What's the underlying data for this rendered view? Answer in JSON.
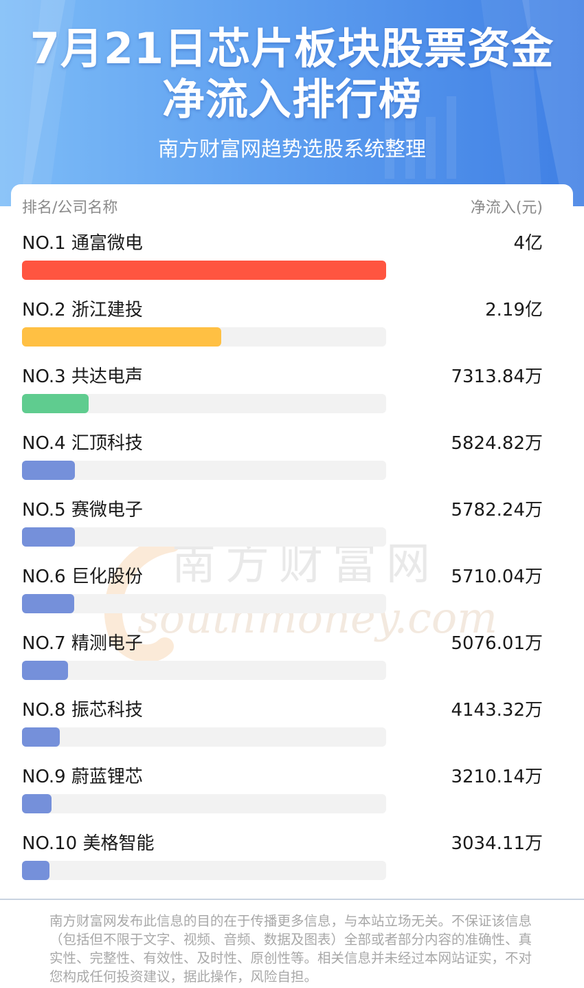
{
  "header": {
    "title_line1": "7月21日芯片板块股票资金",
    "title_line2": "净流入排行榜",
    "subtitle": "南方财富网趋势选股系统整理"
  },
  "columns": {
    "left": "排名/公司名称",
    "right": "净流入(元)"
  },
  "watermark": {
    "cn": "南方财富网",
    "en": "southmoney.com"
  },
  "chart_data": {
    "type": "bar",
    "orientation": "horizontal",
    "categories": [
      "NO.1 通富微电",
      "NO.2 浙江建投",
      "NO.3 共达电声",
      "NO.4 汇顶科技",
      "NO.5 赛微电子",
      "NO.6 巨化股份",
      "NO.7 精测电子",
      "NO.8 振芯科技",
      "NO.9 蔚蓝锂芯",
      "NO.10 美格智能"
    ],
    "value_labels": [
      "4亿",
      "2.19亿",
      "7313.84万",
      "5824.82万",
      "5782.24万",
      "5710.04万",
      "5076.01万",
      "4143.32万",
      "3210.14万",
      "3034.11万"
    ],
    "values_yuan": [
      400000000,
      219000000,
      73138400,
      58248200,
      57822400,
      57100400,
      50760100,
      41433200,
      32101400,
      30341100
    ],
    "bar_colors": [
      "#ff5540",
      "#ffc043",
      "#5fcc8f",
      "#7590da",
      "#7590da",
      "#7590da",
      "#7590da",
      "#7590da",
      "#7590da",
      "#7590da"
    ],
    "track_color": "#f2f2f2"
  },
  "footer": {
    "disclaimer": "南方财富网发布此信息的目的在于传播更多信息，与本站立场无关。不保证该信息（包括但不限于文字、视频、音频、数据及图表）全部或者部分内容的准确性、真实性、完整性、有效性、及时性、原创性等。相关信息并未经过本网站证实，不对您构成任何投资建议，据此操作，风险自担。"
  }
}
